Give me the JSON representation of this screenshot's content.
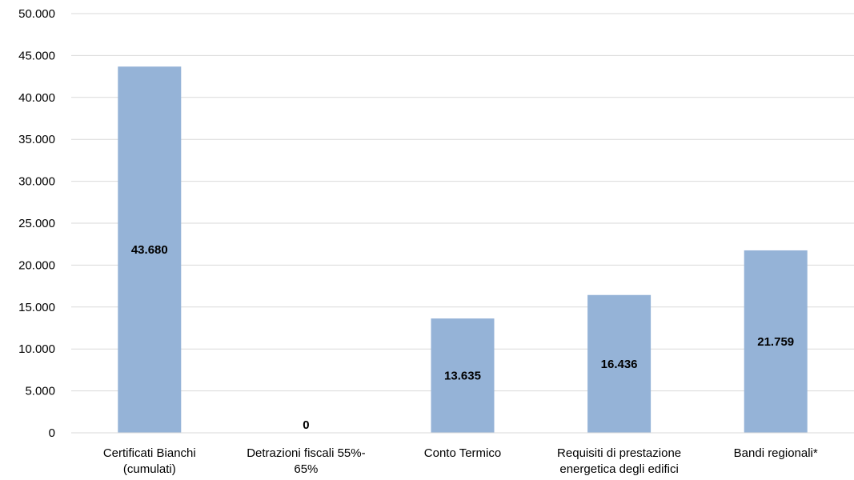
{
  "chart_data": {
    "type": "bar",
    "categories": [
      "Certificati Bianchi (cumulati)",
      "Detrazioni fiscali 55%-65%",
      "Conto Termico",
      "Requisiti di prestazione energetica degli edifici",
      "Bandi regionali*"
    ],
    "category_label_lines": [
      [
        "Certificati Bianchi",
        "(cumulati)"
      ],
      [
        "Detrazioni fiscali 55%-",
        "65%"
      ],
      [
        "Conto Termico"
      ],
      [
        "Requisiti di prestazione",
        "energetica degli edifici"
      ],
      [
        "Bandi regionali*"
      ]
    ],
    "values": [
      43680,
      0,
      13635,
      16436,
      21759
    ],
    "data_labels": [
      "43.680",
      "0",
      "13.635",
      "16.436",
      "21.759"
    ],
    "yticks": [
      0,
      5000,
      10000,
      15000,
      20000,
      25000,
      30000,
      35000,
      40000,
      45000,
      50000
    ],
    "ytick_labels": [
      "0",
      "5.000",
      "10.000",
      "15.000",
      "20.000",
      "25.000",
      "30.000",
      "35.000",
      "40.000",
      "45.000",
      "50.000"
    ],
    "ylim": [
      0,
      50000
    ],
    "title": "",
    "xlabel": "",
    "ylabel": "",
    "grid": true,
    "legend": "none",
    "bar_color": "#95b3d7",
    "grid_color": "#d9d9d9"
  }
}
